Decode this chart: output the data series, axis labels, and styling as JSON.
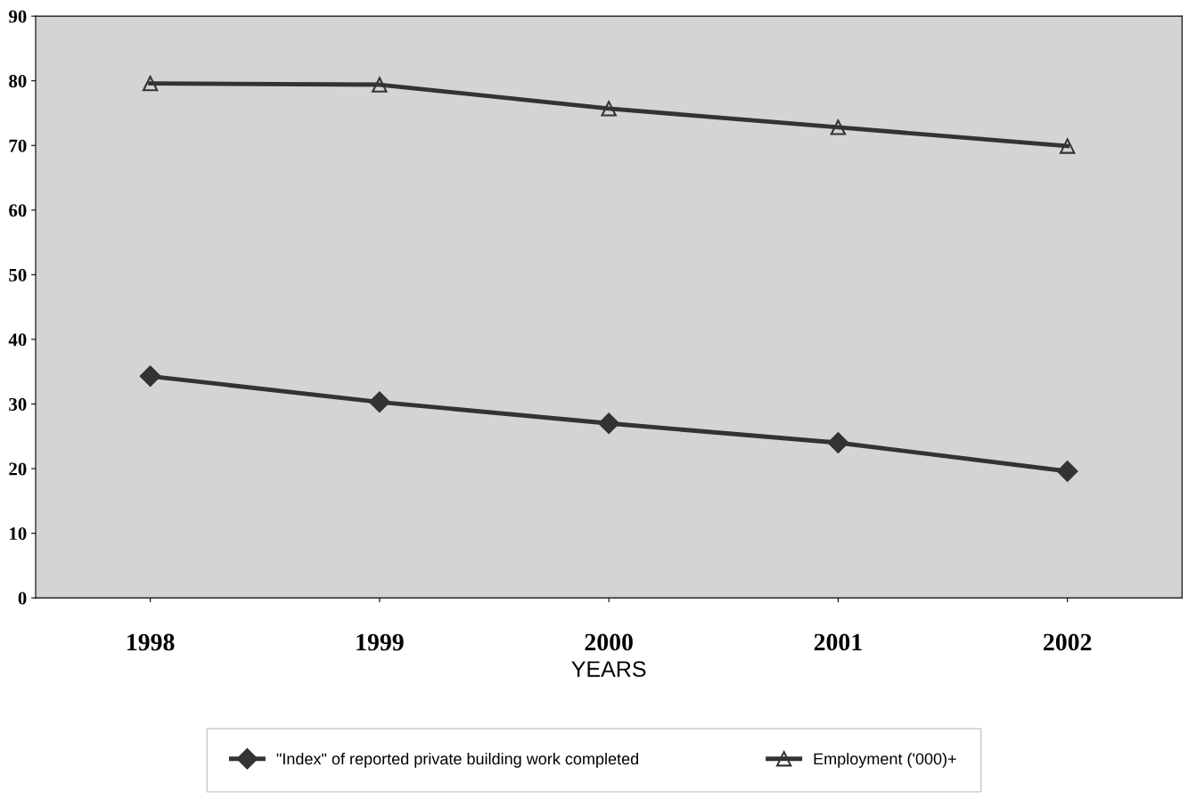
{
  "chart_data": {
    "type": "line",
    "xlabel": "YEARS",
    "categories": [
      "1998",
      "1999",
      "2000",
      "2001",
      "2002"
    ],
    "series": [
      {
        "name": "\"Index\" of reported private building work completed",
        "color": "#333333",
        "marker": "diamond",
        "values": [
          34.3,
          30.3,
          27.0,
          24.0,
          19.6
        ]
      },
      {
        "name": "Employment ('000)+",
        "color": "#333333",
        "marker": "triangle",
        "values": [
          79.6,
          79.4,
          75.7,
          72.8,
          69.9
        ]
      }
    ],
    "ylim": [
      0,
      90
    ],
    "yticks": [
      0,
      10,
      20,
      30,
      40,
      50,
      60,
      70,
      80,
      90
    ],
    "grid": false,
    "legend": "bottom",
    "line_style": "solid"
  }
}
